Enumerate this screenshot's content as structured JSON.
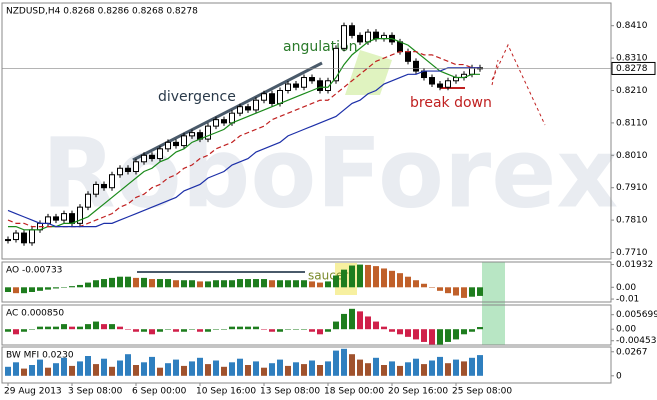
{
  "chart_data": [
    {
      "type": "line",
      "title": "NZDUSD,H4  0.8268 0.8286 0.8268 0.8278",
      "categories": [
        "29 Aug 2013",
        null,
        null,
        null,
        null,
        null,
        null,
        null,
        "3 Sep 08:00",
        null,
        null,
        null,
        null,
        null,
        null,
        null,
        "6 Sep 00:00",
        null,
        null,
        null,
        null,
        null,
        null,
        null,
        "10 Sep 16:00",
        null,
        null,
        null,
        null,
        null,
        null,
        null,
        "13 Sep 08:00",
        null,
        null,
        null,
        null,
        null,
        null,
        null,
        "18 Sep 00:00",
        null,
        null,
        null,
        null,
        null,
        null,
        null,
        "20 Sep 16:00",
        null,
        null,
        null,
        null,
        null,
        null,
        null,
        "25 Sep 08:00",
        null,
        null,
        null
      ],
      "series": [
        {
          "color": "#000000",
          "style": "candle",
          "values": [
            0.775,
            0.777,
            0.774,
            0.778,
            0.78,
            0.782,
            0.781,
            0.783,
            0.78,
            0.785,
            0.789,
            0.792,
            0.791,
            0.795,
            0.797,
            0.796,
            0.799,
            0.801,
            0.8,
            0.803,
            0.805,
            0.804,
            0.807,
            0.808,
            0.806,
            0.81,
            0.812,
            0.811,
            0.814,
            0.816,
            0.815,
            0.818,
            0.82,
            0.817,
            0.821,
            0.823,
            0.822,
            0.825,
            0.824,
            0.821,
            0.824,
            0.834,
            0.841,
            0.838,
            0.836,
            0.839,
            0.837,
            0.838,
            0.836,
            0.833,
            0.83,
            0.827,
            0.825,
            0.823,
            0.822,
            0.824,
            0.825,
            0.826,
            0.828,
            0.8278
          ]
        },
        {
          "color": "#1a8a1a",
          "style": "solid",
          "values": [
            0.779,
            0.779,
            0.778,
            0.778,
            0.778,
            0.779,
            0.779,
            0.78,
            0.78,
            0.781,
            0.782,
            0.784,
            0.786,
            0.788,
            0.79,
            0.792,
            0.794,
            0.796,
            0.797,
            0.799,
            0.8,
            0.802,
            0.803,
            0.805,
            0.806,
            0.807,
            0.808,
            0.809,
            0.811,
            0.812,
            0.813,
            0.814,
            0.815,
            0.816,
            0.817,
            0.818,
            0.819,
            0.82,
            0.821,
            0.822,
            0.822,
            0.825,
            0.829,
            0.832,
            0.834,
            0.836,
            0.837,
            0.837,
            0.837,
            0.836,
            0.835,
            0.833,
            0.831,
            0.829,
            0.827,
            0.826,
            0.825,
            0.825,
            0.826,
            0.826
          ]
        },
        {
          "color": "#c02020",
          "style": "dash",
          "values": [
            0.781,
            0.78,
            0.78,
            0.779,
            0.779,
            0.779,
            0.779,
            0.779,
            0.779,
            0.779,
            0.78,
            0.781,
            0.782,
            0.783,
            0.785,
            0.786,
            0.788,
            0.789,
            0.791,
            0.792,
            0.794,
            0.795,
            0.797,
            0.798,
            0.8,
            0.801,
            0.803,
            0.804,
            0.805,
            0.807,
            0.808,
            0.809,
            0.81,
            0.812,
            0.813,
            0.814,
            0.815,
            0.816,
            0.817,
            0.818,
            0.818,
            0.82,
            0.822,
            0.824,
            0.826,
            0.828,
            0.83,
            0.831,
            0.832,
            0.833,
            0.833,
            0.833,
            0.832,
            0.832,
            0.831,
            0.83,
            0.829,
            0.829,
            0.828,
            0.828
          ]
        },
        {
          "color": "#1c2fa8",
          "style": "solid",
          "values": [
            0.784,
            0.783,
            0.782,
            0.781,
            0.78,
            0.78,
            0.779,
            0.779,
            0.779,
            0.779,
            0.779,
            0.779,
            0.78,
            0.78,
            0.781,
            0.782,
            0.783,
            0.784,
            0.785,
            0.786,
            0.787,
            0.788,
            0.79,
            0.791,
            0.792,
            0.794,
            0.795,
            0.796,
            0.798,
            0.799,
            0.8,
            0.802,
            0.803,
            0.804,
            0.805,
            0.807,
            0.808,
            0.809,
            0.81,
            0.811,
            0.812,
            0.813,
            0.815,
            0.817,
            0.818,
            0.82,
            0.821,
            0.823,
            0.824,
            0.825,
            0.826,
            0.826,
            0.827,
            0.827,
            0.827,
            0.828,
            0.828,
            0.828,
            0.828,
            0.828
          ]
        }
      ],
      "ylim": [
        0.769,
        0.848
      ],
      "yticks": [
        {
          "value": 0.841,
          "label": "0.8410"
        },
        {
          "value": 0.831,
          "label": "0.8310"
        },
        {
          "value": 0.821,
          "label": "0.8210"
        },
        {
          "value": 0.811,
          "label": "0.8110"
        },
        {
          "value": 0.801,
          "label": "0.8010"
        },
        {
          "value": 0.791,
          "label": "0.7910"
        },
        {
          "value": 0.781,
          "label": "0.7810"
        },
        {
          "value": 0.771,
          "label": "0.7710"
        }
      ],
      "last_price": 0.8278,
      "annotations": [
        "angulation",
        "divergence",
        "break down"
      ],
      "watermark": "RoboForex"
    },
    {
      "type": "bar",
      "title": "AO -0.00733",
      "up_color": "#1e7d1e",
      "down_color": "#c0602a",
      "values": [
        -0.004,
        -0.005,
        -0.005,
        -0.004,
        -0.003,
        -0.002,
        -0.001,
        0.0,
        0.001,
        0.002,
        0.004,
        0.006,
        0.007,
        0.008,
        0.009,
        0.009,
        0.008,
        0.008,
        0.007,
        0.007,
        0.007,
        0.006,
        0.006,
        0.006,
        0.005,
        0.005,
        0.006,
        0.006,
        0.006,
        0.007,
        0.007,
        0.007,
        0.007,
        0.006,
        0.006,
        0.006,
        0.006,
        0.006,
        0.005,
        0.004,
        0.005,
        0.01,
        0.015,
        0.0185,
        0.0193,
        0.019,
        0.018,
        0.016,
        0.014,
        0.012,
        0.009,
        0.006,
        0.003,
        0.0,
        -0.003,
        -0.005,
        -0.007,
        -0.009,
        -0.008,
        -0.00733
      ],
      "ylim": [
        -0.0125,
        0.0215
      ],
      "yticks": [
        0.01932,
        {
          "value": 0,
          "label": "0.00"
        },
        -0.01
      ],
      "annotation": "saucer"
    },
    {
      "type": "bar",
      "title": "AC 0.000850",
      "up_color": "#1e7d1e",
      "down_color": "#d0204a",
      "values": [
        -0.001,
        -0.002,
        -0.001,
        0.0,
        0.001,
        0.001,
        0.001,
        0.002,
        0.001,
        0.001,
        0.002,
        0.003,
        0.002,
        0.002,
        0.001,
        0.0,
        -0.001,
        -0.001,
        -0.002,
        -0.001,
        0.0,
        -0.001,
        -0.001,
        0.0,
        -0.001,
        -0.001,
        0.0,
        0.0,
        0.001,
        0.001,
        0.001,
        0.001,
        0.0,
        -0.001,
        -0.001,
        0.0,
        0.0,
        0.0,
        -0.001,
        -0.002,
        -0.001,
        0.003,
        0.006,
        0.008,
        0.007,
        0.005,
        0.003,
        0.001,
        -0.001,
        -0.002,
        -0.003,
        -0.004,
        -0.005,
        -0.006,
        -0.006,
        -0.005,
        -0.004,
        -0.002,
        -0.001,
        0.00085
      ],
      "ylim": [
        -0.0062,
        0.0095
      ],
      "yticks": [
        0.005699,
        {
          "value": 0,
          "label": "0.00"
        },
        -0.00453
      ]
    },
    {
      "type": "bar",
      "title": "BW MFI 0.0230",
      "up_color": "#2f7fbf",
      "down_color": "#a0522d",
      "values": [
        0.01,
        0.015,
        0.008,
        0.012,
        0.018,
        0.009,
        0.014,
        0.02,
        0.011,
        0.016,
        0.022,
        0.013,
        0.019,
        0.01,
        0.017,
        0.024,
        0.012,
        0.015,
        0.021,
        0.009,
        0.014,
        0.018,
        0.011,
        0.016,
        0.02,
        0.013,
        0.017,
        0.01,
        0.015,
        0.019,
        0.012,
        0.016,
        0.009,
        0.014,
        0.018,
        0.011,
        0.015,
        0.013,
        0.017,
        0.012,
        0.016,
        0.028,
        0.03,
        0.024,
        0.018,
        0.014,
        0.02,
        0.012,
        0.016,
        0.011,
        0.015,
        0.019,
        0.013,
        0.017,
        0.021,
        0.014,
        0.018,
        0.016,
        0.02,
        0.023
      ],
      "ylim": [
        -0.008,
        0.032
      ],
      "yticks": [
        0.0267,
        0
      ]
    }
  ]
}
